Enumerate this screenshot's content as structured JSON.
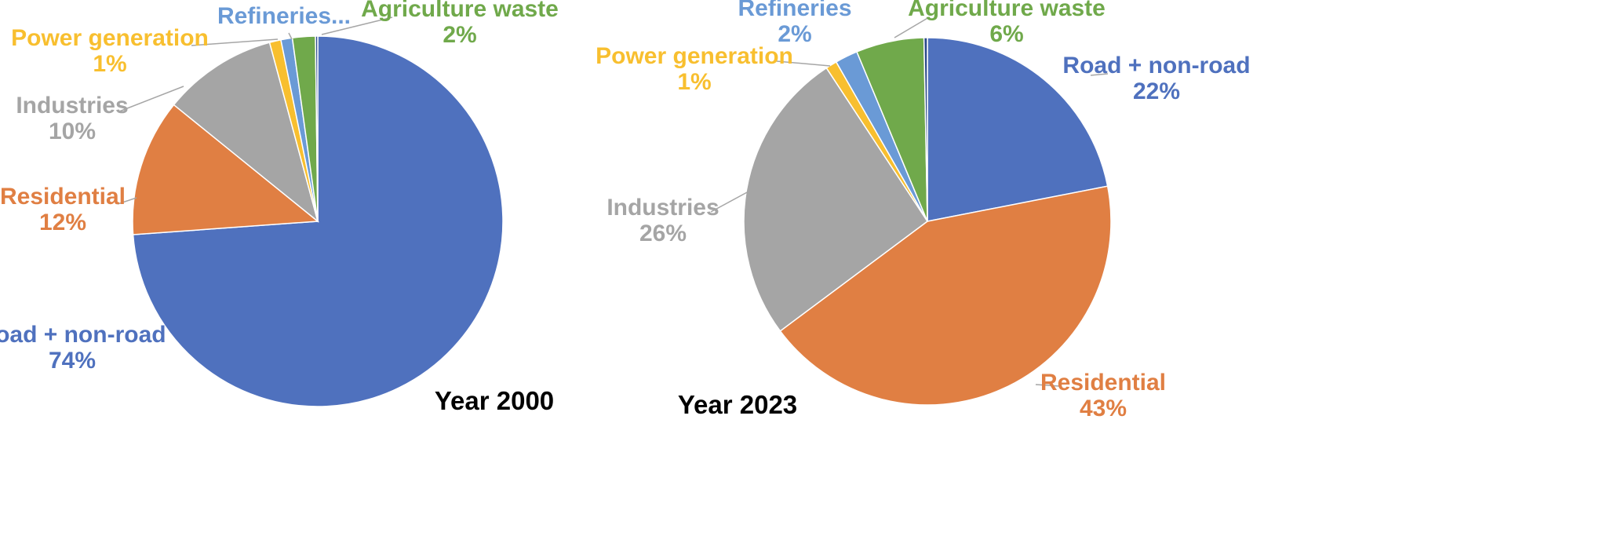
{
  "chart_data": [
    {
      "type": "pie",
      "title": "Year 2000",
      "slices": [
        {
          "label": "Road + non-road",
          "value": 74,
          "pct_label": "74%",
          "color": "#4f71be"
        },
        {
          "label": "Residential",
          "value": 12,
          "pct_label": "12%",
          "color": "#e07f43"
        },
        {
          "label": "Industries",
          "value": 10,
          "pct_label": "10%",
          "color": "#a5a5a5"
        },
        {
          "label": "Power generation",
          "value": 1,
          "pct_label": "1%",
          "color": "#f8bf2f"
        },
        {
          "label": "Refineries...",
          "value": 1,
          "pct_label": "",
          "color": "#6a9ad6"
        },
        {
          "label": "Agriculture waste",
          "value": 2,
          "pct_label": "2%",
          "color": "#70a94b"
        },
        {
          "label": "",
          "value": 0.2,
          "pct_label": "",
          "color": "#2c4a8a"
        }
      ]
    },
    {
      "type": "pie",
      "title": "Year 2023",
      "slices": [
        {
          "label": "Road + non-road",
          "value": 22,
          "pct_label": "22%",
          "color": "#4f71be"
        },
        {
          "label": "Residential",
          "value": 43,
          "pct_label": "43%",
          "color": "#e07f43"
        },
        {
          "label": "Industries",
          "value": 26,
          "pct_label": "26%",
          "color": "#a5a5a5"
        },
        {
          "label": "Power generation",
          "value": 1,
          "pct_label": "1%",
          "color": "#f8bf2f"
        },
        {
          "label": "Refineries",
          "value": 2,
          "pct_label": "2%",
          "color": "#6a9ad6"
        },
        {
          "label": "Agriculture waste",
          "value": 6,
          "pct_label": "6%",
          "color": "#70a94b"
        },
        {
          "label": "",
          "value": 0.3,
          "pct_label": "",
          "color": "#2c4a8a"
        }
      ]
    }
  ]
}
